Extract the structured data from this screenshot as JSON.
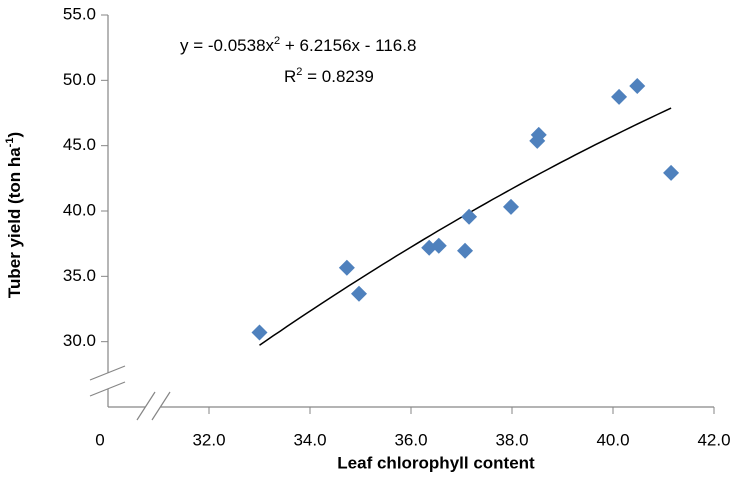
{
  "chart_data": {
    "type": "scatter",
    "x_label": "Leaf chlorophyll content",
    "y_label": [
      "Tuber yield (ton ha",
      "-1",
      ")"
    ],
    "x": [
      33.0,
      34.73,
      34.97,
      36.36,
      36.55,
      37.07,
      37.15,
      37.98,
      38.5,
      38.53,
      40.12,
      40.48,
      41.15
    ],
    "values": [
      30.7,
      35.66,
      33.67,
      37.19,
      37.34,
      36.96,
      39.56,
      40.32,
      45.37,
      45.83,
      48.73,
      49.57,
      42.92
    ],
    "color": "#4f81bd",
    "xlim": [
      30,
      42
    ],
    "ylim": [
      25,
      55
    ],
    "xticks": [
      0,
      {
        "value": 32,
        "label": "32.0"
      },
      {
        "value": 34,
        "label": "34.0"
      },
      {
        "value": 36,
        "label": "36.0"
      },
      {
        "value": 38,
        "label": "38.0"
      },
      {
        "value": 40,
        "label": "40.0"
      },
      {
        "value": 42,
        "label": "42.0"
      }
    ],
    "yticks": [
      {
        "value": 30,
        "label": "30.0"
      },
      {
        "value": 35,
        "label": "35.0"
      },
      {
        "value": 40,
        "label": "40.0"
      },
      {
        "value": 45,
        "label": "45.0"
      },
      {
        "value": 50,
        "label": "50.0"
      },
      {
        "value": 55,
        "label": "55.0"
      }
    ],
    "trendline": {
      "equation": [
        "y = -0.0538x",
        "2",
        " + 6.2156x - 116.8"
      ],
      "r_squared": [
        "R",
        "2",
        " = 0.8239"
      ],
      "coefficients": [
        -0.0538,
        6.2156,
        -116.8
      ],
      "color": "#000000"
    }
  }
}
